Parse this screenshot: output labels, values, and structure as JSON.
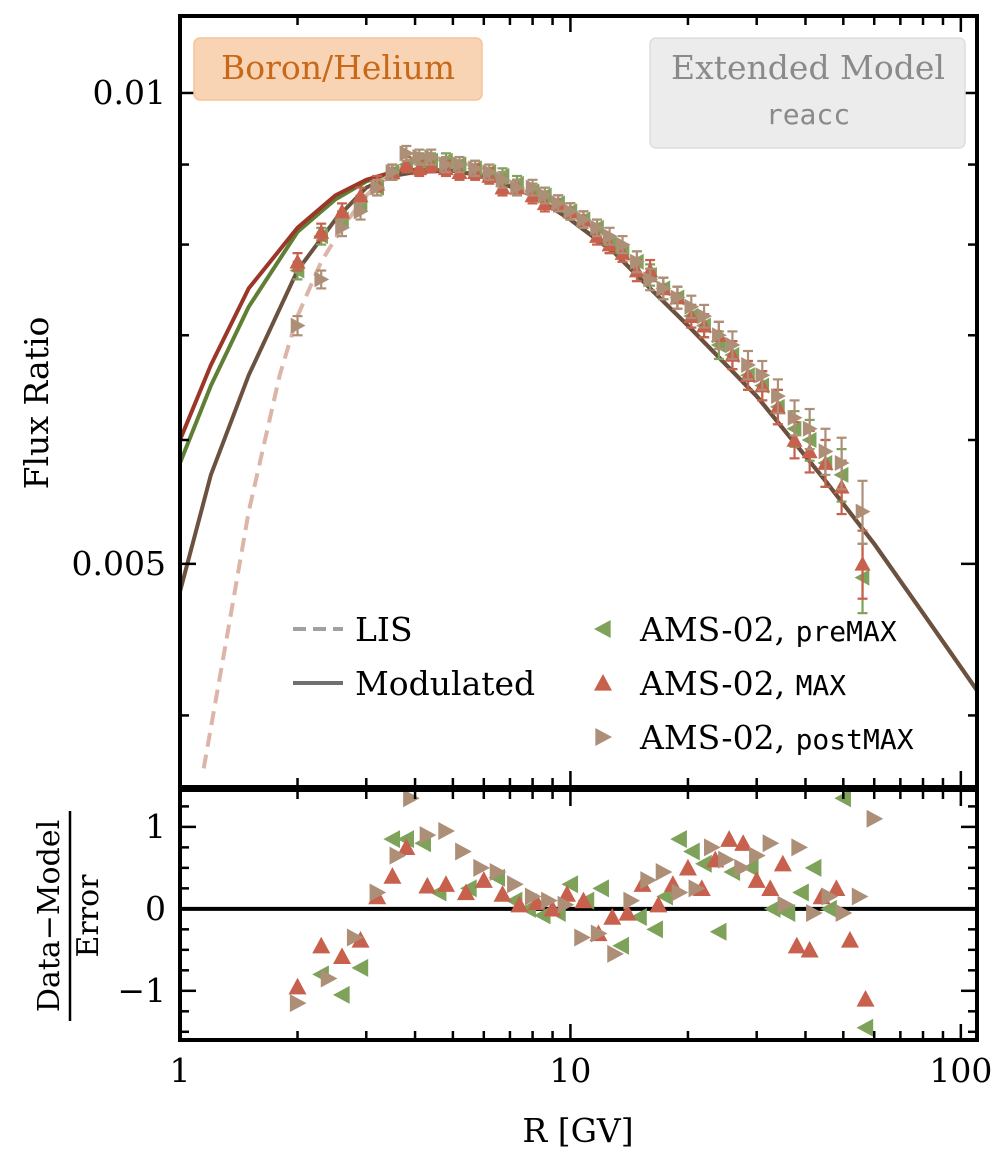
{
  "chart_data": [
    {
      "type": "line",
      "panel": "top",
      "ylabel": "Flux Ratio",
      "xscale": "log",
      "yscale": "log",
      "xlim": [
        1,
        110
      ],
      "ylim": [
        0.0036,
        0.0112
      ],
      "grid": false,
      "yticks": [
        {
          "value": 0.01,
          "label": "0.01"
        },
        {
          "value": 0.005,
          "label": "0.005"
        }
      ],
      "badge_left": {
        "text": "Boron/Helium",
        "color": "#f8d4b4",
        "text_color": "#c8691a"
      },
      "badge_right": {
        "line1": "Extended Model",
        "line2": "reacc",
        "color": "#ececec",
        "text_color": "#8a8a8a"
      },
      "legend_placement": "bottom",
      "legend": [
        {
          "style": "dashed",
          "label": "LIS",
          "color": "#a0a0a0"
        },
        {
          "style": "solid",
          "label": "Modulated",
          "color": "#707070"
        },
        {
          "marker": "triangle-left",
          "label_main": "AMS-02, ",
          "label_mono": "preMAX",
          "color": "#7ea25a"
        },
        {
          "marker": "triangle-up",
          "label_main": "AMS-02, ",
          "label_mono": "MAX",
          "color": "#c7604c"
        },
        {
          "marker": "triangle-right",
          "label_main": "AMS-02, ",
          "label_mono": "postMAX",
          "color": "#ad8f78"
        }
      ],
      "series": [
        {
          "name": "Modulated preMAX",
          "style": "solid",
          "color": "#5f7f35",
          "x": [
            1.0,
            1.2,
            1.5,
            2.0,
            2.5,
            3.0,
            3.5,
            4.0,
            5.0,
            6.0,
            8.0,
            10.0,
            13.0,
            16.0,
            20.0,
            30.0,
            45.0,
            60.0,
            80.0,
            110.0
          ],
          "y": [
            0.0058,
            0.0065,
            0.0073,
            0.00815,
            0.00855,
            0.00878,
            0.0089,
            0.00893,
            0.00892,
            0.00885,
            0.0086,
            0.0083,
            0.0079,
            0.0075,
            0.0071,
            0.0064,
            0.00565,
            0.00515,
            0.00465,
            0.00415
          ]
        },
        {
          "name": "Modulated MAX",
          "style": "solid",
          "color": "#9c3628",
          "x": [
            1.0,
            1.2,
            1.5,
            2.0,
            2.5,
            3.0,
            3.5,
            4.0,
            5.0,
            6.0,
            8.0,
            10.0,
            13.0,
            16.0,
            20.0,
            30.0,
            45.0,
            60.0,
            80.0,
            110.0
          ],
          "y": [
            0.006,
            0.0067,
            0.0075,
            0.0082,
            0.0086,
            0.0088,
            0.0089,
            0.00893,
            0.00892,
            0.00885,
            0.0086,
            0.0083,
            0.0079,
            0.0075,
            0.0071,
            0.0064,
            0.00565,
            0.00515,
            0.00465,
            0.00415
          ]
        },
        {
          "name": "Modulated postMAX",
          "style": "solid",
          "color": "#6b5240",
          "x": [
            1.0,
            1.2,
            1.5,
            2.0,
            2.5,
            3.0,
            3.5,
            4.0,
            5.0,
            6.0,
            8.0,
            10.0,
            13.0,
            16.0,
            20.0,
            30.0,
            45.0,
            60.0,
            80.0,
            110.0
          ],
          "y": [
            0.0048,
            0.0057,
            0.0066,
            0.0077,
            0.0083,
            0.0087,
            0.00885,
            0.0089,
            0.00892,
            0.00885,
            0.0086,
            0.0083,
            0.0079,
            0.0075,
            0.0071,
            0.0064,
            0.00565,
            0.00515,
            0.00465,
            0.00415
          ]
        },
        {
          "name": "LIS",
          "style": "dashed",
          "color": "#dcb4a8",
          "x": [
            1.15,
            1.3,
            1.5,
            1.8,
            2.0,
            2.3,
            2.6,
            3.0,
            3.5,
            4.0,
            4.5,
            5.0,
            6.0,
            8.0
          ],
          "y": [
            0.0037,
            0.0044,
            0.0054,
            0.0066,
            0.0072,
            0.0078,
            0.0082,
            0.0086,
            0.0089,
            0.00905,
            0.00908,
            0.00905,
            0.00895,
            0.0086
          ]
        }
      ],
      "data_series": [
        {
          "name": "AMS-02, preMAX",
          "marker": "triangle-left",
          "color": "#7ea25a",
          "x": [
            2.0,
            2.3,
            2.6,
            2.9,
            3.2,
            3.5,
            3.8,
            4.1,
            4.4,
            4.8,
            5.2,
            5.7,
            6.2,
            6.7,
            7.3,
            8.0,
            8.6,
            9.3,
            10.0,
            10.8,
            11.7,
            12.6,
            13.6,
            14.8,
            16.0,
            17.3,
            18.8,
            20.4,
            22.0,
            24.0,
            26.0,
            28.5,
            31.0,
            34.0,
            37.5,
            41.0,
            45.0,
            49.5,
            56.0
          ],
          "y": [
            0.0077,
            0.0081,
            0.0083,
            0.0085,
            0.0087,
            0.0089,
            0.009,
            0.00905,
            0.00905,
            0.00905,
            0.009,
            0.00895,
            0.0089,
            0.00885,
            0.00875,
            0.00865,
            0.0086,
            0.0085,
            0.0084,
            0.0083,
            0.0082,
            0.008,
            0.0079,
            0.0078,
            0.00765,
            0.0075,
            0.0074,
            0.0072,
            0.0071,
            0.0069,
            0.0068,
            0.0066,
            0.0065,
            0.0063,
            0.0061,
            0.006,
            0.0058,
            0.0057,
            0.0049
          ],
          "yerr": [
            0.0001,
            0.0001,
            0.0001,
            0.0001,
            0.0001,
            0.0001,
            0.0001,
            0.0001,
            0.0001,
            0.0001,
            0.0001,
            0.0001,
            0.0001,
            0.0001,
            0.0001,
            0.0001,
            0.0001,
            0.0001,
            0.0001,
            0.0001,
            0.0001,
            0.0001,
            0.0001,
            0.00012,
            0.00012,
            0.00012,
            0.00012,
            0.00012,
            0.00012,
            0.00014,
            0.00014,
            0.00014,
            0.00014,
            0.00016,
            0.00016,
            0.00018,
            0.0002,
            0.00022,
            0.00025
          ]
        },
        {
          "name": "AMS-02, MAX",
          "marker": "triangle-up",
          "color": "#c7604c",
          "x": [
            2.0,
            2.3,
            2.6,
            2.9,
            3.2,
            3.5,
            3.8,
            4.1,
            4.4,
            4.8,
            5.2,
            5.7,
            6.2,
            6.7,
            7.3,
            8.0,
            8.6,
            9.3,
            10.0,
            10.8,
            11.7,
            12.6,
            13.6,
            14.8,
            16.0,
            17.3,
            18.8,
            20.4,
            22.0,
            24.0,
            26.0,
            28.5,
            31.0,
            34.0,
            37.5,
            41.0,
            45.0,
            49.5,
            56.0
          ],
          "y": [
            0.0078,
            0.00815,
            0.0084,
            0.0086,
            0.00875,
            0.0089,
            0.009,
            0.00895,
            0.009,
            0.00895,
            0.0089,
            0.0089,
            0.00885,
            0.0087,
            0.0087,
            0.0086,
            0.0085,
            0.0085,
            0.0084,
            0.0083,
            0.0081,
            0.008,
            0.0079,
            0.0077,
            0.0077,
            0.0075,
            0.0074,
            0.0072,
            0.0071,
            0.007,
            0.0068,
            0.0066,
            0.0065,
            0.0063,
            0.006,
            0.0059,
            0.0058,
            0.0056,
            0.005
          ],
          "yerr": [
            0.0001,
            0.0001,
            0.0001,
            0.0001,
            0.0001,
            0.0001,
            0.0001,
            0.0001,
            0.0001,
            0.0001,
            0.0001,
            0.0001,
            0.0001,
            0.0001,
            0.0001,
            0.0001,
            0.0001,
            0.0001,
            0.0001,
            0.0001,
            0.0001,
            0.0001,
            0.0001,
            0.00012,
            0.00012,
            0.00012,
            0.00012,
            0.00012,
            0.00012,
            0.00014,
            0.00014,
            0.00014,
            0.00014,
            0.00016,
            0.00016,
            0.00018,
            0.0002,
            0.00022,
            0.00025
          ]
        },
        {
          "name": "AMS-02, postMAX",
          "marker": "triangle-right",
          "color": "#ad8f78",
          "x": [
            2.0,
            2.3,
            2.6,
            2.9,
            3.2,
            3.5,
            3.8,
            4.1,
            4.4,
            4.8,
            5.2,
            5.7,
            6.2,
            6.7,
            7.3,
            8.0,
            8.6,
            9.3,
            10.0,
            10.8,
            11.7,
            12.6,
            13.6,
            14.8,
            16.0,
            17.3,
            18.8,
            20.4,
            22.0,
            24.0,
            26.0,
            28.5,
            31.0,
            34.0,
            37.5,
            41.0,
            45.0,
            49.5,
            56.0
          ],
          "y": [
            0.0071,
            0.0076,
            0.0082,
            0.0084,
            0.0087,
            0.0089,
            0.00915,
            0.0091,
            0.0091,
            0.009,
            0.009,
            0.00895,
            0.0089,
            0.0088,
            0.0087,
            0.0087,
            0.0086,
            0.0085,
            0.0084,
            0.0083,
            0.0082,
            0.0081,
            0.008,
            0.0078,
            0.0076,
            0.0075,
            0.0074,
            0.0073,
            0.0072,
            0.007,
            0.0069,
            0.0067,
            0.0066,
            0.0064,
            0.0062,
            0.0061,
            0.0059,
            0.0058,
            0.0054
          ],
          "yerr": [
            0.0001,
            0.0001,
            0.0001,
            0.0001,
            0.0001,
            0.0001,
            0.0001,
            0.0001,
            0.0001,
            0.0001,
            0.0001,
            0.0001,
            0.0001,
            0.0001,
            0.0001,
            0.0001,
            0.0001,
            0.0001,
            0.0001,
            0.0001,
            0.0001,
            0.0001,
            0.0001,
            0.00012,
            0.00012,
            0.00012,
            0.00012,
            0.00012,
            0.00012,
            0.00014,
            0.00014,
            0.00014,
            0.00014,
            0.00016,
            0.00016,
            0.00018,
            0.0002,
            0.00022,
            0.00025
          ]
        }
      ]
    },
    {
      "type": "scatter",
      "panel": "bottom",
      "xlabel": "R [GV]",
      "ylabel_numerator": "Data−Model",
      "ylabel_denominator": "Error",
      "xscale": "log",
      "xlim": [
        1,
        110
      ],
      "ylim": [
        -1.6,
        1.45
      ],
      "xticks": [
        {
          "value": 1,
          "label": "1"
        },
        {
          "value": 10,
          "label": "10"
        },
        {
          "value": 100,
          "label": "100"
        }
      ],
      "yticks": [
        {
          "value": 1,
          "label": "1"
        },
        {
          "value": 0,
          "label": "0"
        },
        {
          "value": -1,
          "label": "−1"
        }
      ],
      "reference_line": 0,
      "series": [
        {
          "name": "AMS-02, preMAX",
          "marker": "triangle-left",
          "color": "#7ea25a",
          "x": [
            2.3,
            2.6,
            2.9,
            3.5,
            3.8,
            4.2,
            4.6,
            5.5,
            6.5,
            7.2,
            7.8,
            8.5,
            9.3,
            10.0,
            11.0,
            12.0,
            13.5,
            15.0,
            16.5,
            17.5,
            19.0,
            20.5,
            22.0,
            24.0,
            26.0,
            29.0,
            33.0,
            36.0,
            39.0,
            42.0,
            46.0,
            50.0,
            57.0
          ],
          "y": [
            -0.8,
            -1.05,
            -0.72,
            0.85,
            0.85,
            0.8,
            0.2,
            0.25,
            0.38,
            0.1,
            0.0,
            -0.08,
            -0.05,
            0.3,
            0.1,
            0.25,
            -0.45,
            -0.1,
            -0.25,
            0.15,
            0.85,
            0.7,
            0.55,
            -0.28,
            0.45,
            0.5,
            0.0,
            -0.05,
            0.2,
            0.5,
            0.0,
            1.35,
            -1.45
          ]
        },
        {
          "name": "AMS-02, MAX",
          "marker": "triangle-up",
          "color": "#c7604c",
          "x": [
            2.0,
            2.3,
            2.6,
            2.9,
            3.2,
            3.5,
            3.8,
            4.3,
            4.8,
            5.4,
            6.0,
            6.7,
            7.4,
            8.2,
            9.0,
            9.8,
            10.8,
            11.8,
            12.8,
            14.0,
            15.3,
            16.8,
            18.3,
            20.0,
            21.7,
            23.5,
            25.5,
            27.7,
            30.0,
            32.5,
            35.0,
            38.0,
            41.0,
            44.0,
            48.0,
            52.0,
            57.0
          ],
          "y": [
            -0.95,
            -0.45,
            -0.58,
            -0.38,
            0.15,
            0.4,
            0.75,
            0.28,
            0.3,
            0.2,
            0.35,
            0.18,
            0.05,
            0.08,
            0.0,
            0.18,
            0.1,
            -0.3,
            -0.1,
            -0.05,
            0.3,
            0.05,
            0.3,
            0.5,
            0.25,
            0.6,
            0.85,
            0.8,
            0.35,
            0.25,
            0.55,
            -0.45,
            -0.5,
            0.15,
            0.25,
            -0.38,
            -1.1
          ]
        },
        {
          "name": "AMS-02, postMAX",
          "marker": "triangle-right",
          "color": "#ad8f78",
          "x": [
            2.0,
            2.4,
            2.8,
            3.2,
            3.6,
            3.9,
            4.3,
            4.8,
            5.3,
            5.9,
            6.5,
            7.2,
            8.0,
            8.8,
            9.7,
            10.7,
            11.8,
            13.0,
            14.3,
            15.8,
            17.3,
            19.0,
            21.0,
            23.0,
            25.0,
            27.5,
            30.0,
            32.5,
            35.5,
            38.5,
            42.0,
            46.0,
            50.0,
            55.0,
            60.0
          ],
          "y": [
            -1.15,
            -0.85,
            -0.35,
            0.2,
            0.65,
            1.35,
            0.9,
            0.95,
            0.7,
            0.5,
            0.45,
            0.3,
            0.15,
            0.1,
            0.05,
            -0.35,
            -0.3,
            -0.55,
            0.1,
            0.35,
            0.45,
            0.2,
            0.25,
            0.75,
            0.6,
            0.5,
            0.65,
            0.8,
            0.05,
            0.75,
            -0.05,
            0.15,
            -0.05,
            0.15,
            1.1
          ]
        }
      ]
    }
  ]
}
